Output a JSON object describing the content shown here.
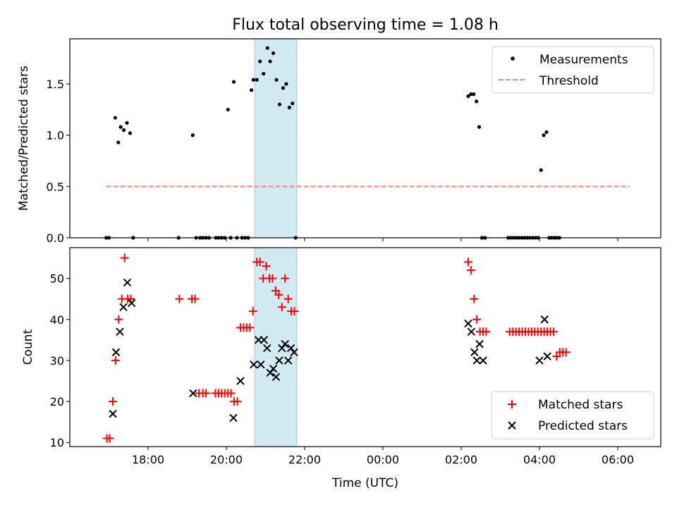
{
  "chart_data": [
    {
      "type": "scatter",
      "title": "Flux total observing time = 1.08 h",
      "xlabel": "",
      "ylabel": "Matched/Predicted stars",
      "x_unit": "hours since 00:00 UTC of first night (24 = 00:00 next day)",
      "xlim": [
        16.0,
        31.1
      ],
      "ylim": [
        0.0,
        1.94
      ],
      "yticks": [
        0.0,
        0.5,
        1.0,
        1.5
      ],
      "ytick_labels": [
        "0.0",
        "0.5",
        "1.0",
        "1.5"
      ],
      "shaded_interval": [
        20.72,
        21.8
      ],
      "legend": {
        "location": "upper right",
        "entries": [
          "Measurements",
          "Threshold"
        ]
      },
      "series": [
        {
          "name": "Measurements",
          "style": "dot",
          "color": "#000000",
          "x": [
            16.93,
            17.0,
            17.16,
            17.24,
            17.3,
            17.38,
            17.46,
            17.54,
            17.62,
            18.78,
            19.14,
            19.23,
            19.33,
            19.4,
            19.48,
            19.56,
            19.73,
            19.8,
            19.88,
            19.96,
            20.04,
            20.11,
            20.19,
            20.27,
            20.4,
            20.48,
            20.56,
            20.64,
            20.69,
            20.78,
            20.86,
            20.95,
            21.05,
            21.12,
            21.2,
            21.28,
            21.36,
            21.45,
            21.53,
            21.61,
            21.69,
            21.77,
            26.18,
            26.25,
            26.32,
            26.39,
            26.46,
            26.53,
            26.61,
            27.2,
            27.27,
            27.34,
            27.41,
            27.48,
            27.55,
            27.62,
            27.69,
            27.76,
            27.83,
            27.9,
            27.97,
            28.04,
            28.11,
            28.18,
            28.25,
            28.31,
            28.38,
            28.44,
            28.51
          ],
          "y": [
            0.0,
            0.0,
            1.17,
            0.93,
            1.08,
            1.05,
            1.12,
            1.02,
            0.0,
            0.0,
            1.0,
            0.0,
            0.0,
            0.0,
            0.0,
            0.0,
            0.0,
            0.0,
            0.0,
            0.0,
            1.25,
            0.0,
            1.52,
            0.0,
            0.0,
            0.0,
            0.0,
            1.44,
            1.54,
            1.54,
            1.72,
            1.6,
            1.85,
            1.72,
            1.8,
            1.54,
            1.3,
            1.46,
            1.5,
            1.27,
            1.31,
            0.0,
            1.38,
            1.4,
            1.4,
            1.33,
            1.08,
            0.0,
            0.0,
            0.0,
            0.0,
            0.0,
            0.0,
            0.0,
            0.0,
            0.0,
            0.0,
            0.0,
            0.0,
            0.0,
            0.0,
            0.66,
            1.0,
            1.03,
            0.0,
            0.0,
            0.0,
            0.0,
            0.0
          ]
        },
        {
          "name": "Threshold",
          "style": "dashed-line",
          "color": "#ff7f7f",
          "x": [
            16.93,
            30.3
          ],
          "y": [
            0.5,
            0.5
          ]
        }
      ]
    },
    {
      "type": "scatter",
      "title": "",
      "xlabel": "Time (UTC)",
      "ylabel": "Count",
      "x_unit": "hours since 00:00 UTC of first night (24 = 00:00 next day)",
      "xlim": [
        16.0,
        31.1
      ],
      "ylim": [
        9.0,
        57.5
      ],
      "xticks": [
        18,
        20,
        22,
        24,
        26,
        28,
        30
      ],
      "xtick_labels": [
        "18:00",
        "20:00",
        "22:00",
        "00:00",
        "02:00",
        "04:00",
        "06:00"
      ],
      "yticks": [
        10,
        20,
        30,
        40,
        50
      ],
      "ytick_labels": [
        "10",
        "20",
        "30",
        "40",
        "50"
      ],
      "shaded_interval": [
        20.72,
        21.8
      ],
      "legend": {
        "location": "lower right",
        "entries": [
          "Matched stars",
          "Predicted stars"
        ]
      },
      "series": [
        {
          "name": "Matched stars",
          "marker": "+",
          "color": "#ff0000",
          "x": [
            16.95,
            17.02,
            17.1,
            17.17,
            17.25,
            17.33,
            17.4,
            17.48,
            17.56,
            18.8,
            19.12,
            19.2,
            19.3,
            19.4,
            19.48,
            19.72,
            19.8,
            19.88,
            19.96,
            20.04,
            20.12,
            20.2,
            20.28,
            20.36,
            20.44,
            20.52,
            20.6,
            20.68,
            20.78,
            20.86,
            20.94,
            21.02,
            21.1,
            21.18,
            21.26,
            21.34,
            21.42,
            21.5,
            21.58,
            21.66,
            21.74,
            26.18,
            26.25,
            26.33,
            26.4,
            26.48,
            26.56,
            26.64,
            27.24,
            27.32,
            27.4,
            27.48,
            27.56,
            27.64,
            27.72,
            27.8,
            27.88,
            27.96,
            28.04,
            28.12,
            28.2,
            28.28,
            28.36,
            28.44,
            28.52,
            28.6,
            28.68
          ],
          "y": [
            11,
            11,
            20,
            30,
            40,
            45,
            55,
            45,
            45,
            45,
            45,
            45,
            22,
            22,
            22,
            22,
            22,
            22,
            22,
            22,
            22,
            20,
            20,
            38,
            38,
            38,
            38,
            42,
            54,
            54,
            50,
            53,
            50,
            50,
            47,
            46,
            43,
            50,
            45,
            42,
            42,
            54,
            52,
            45,
            40,
            37,
            37,
            37,
            37,
            37,
            37,
            37,
            37,
            37,
            37,
            37,
            37,
            37,
            37,
            37,
            37,
            37,
            37,
            31,
            32,
            32,
            32
          ]
        },
        {
          "name": "Predicted stars",
          "marker": "x",
          "color": "#000000",
          "x": [
            17.1,
            17.18,
            17.28,
            17.37,
            17.47,
            17.58,
            19.15,
            20.18,
            20.36,
            20.7,
            20.82,
            20.88,
            20.96,
            21.04,
            21.12,
            21.2,
            21.27,
            21.35,
            21.42,
            21.5,
            21.58,
            21.65,
            21.73,
            26.18,
            26.26,
            26.34,
            26.4,
            26.47,
            26.56,
            28.0,
            28.13,
            28.2
          ],
          "y": [
            17,
            32,
            37,
            43,
            49,
            44,
            22,
            16,
            25,
            29,
            35,
            29,
            35,
            33,
            27,
            28,
            26,
            30,
            33,
            34,
            30,
            33,
            32,
            39,
            37,
            32,
            30,
            34,
            30,
            30,
            40,
            31
          ]
        }
      ]
    }
  ]
}
